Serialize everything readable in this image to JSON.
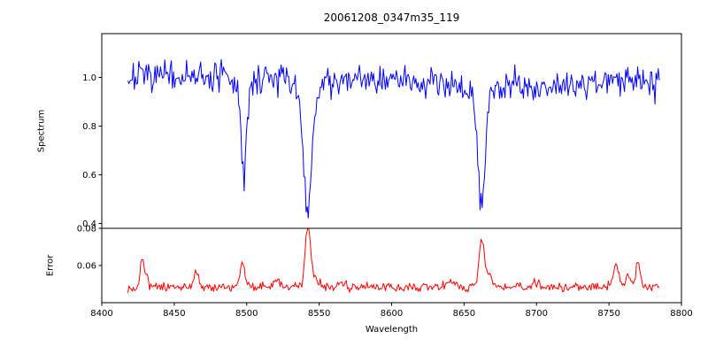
{
  "title": "20061208_0347m35_119",
  "xlabel": "Wavelength",
  "colors": {
    "spectrum": "#0000ff",
    "error": "#ff0000",
    "axis": "#000000",
    "background": "#ffffff"
  },
  "chart_data": [
    {
      "type": "line",
      "name": "spectrum",
      "title": "20061208_0347m35_119",
      "ylabel": "Spectrum",
      "color": "#0000ff",
      "legend": "none",
      "grid": false,
      "xlim": [
        8400,
        8800
      ],
      "ylim": [
        0.38,
        1.18
      ],
      "yticks": [
        0.4,
        0.6,
        0.8,
        1.0
      ],
      "ytick_labels": [
        "0.4",
        "0.6",
        "0.8",
        "1.0"
      ],
      "description": "Noisy stellar spectrum, continuum near 1.0 with Ca II triplet absorption lines at 8498, 8542 and 8662 reaching depths of about 0.59, 0.43 and 0.48",
      "generation": {
        "seed": 7,
        "x_start": 8418,
        "x_end": 8785,
        "x_step": 0.75,
        "baseline": 1.0,
        "noise_std": 0.03,
        "dips": [
          {
            "center": 8690,
            "depth": 0.035,
            "sigma": 50
          },
          {
            "center": 8498,
            "depth": 0.36,
            "sigma": 1.8
          },
          {
            "center": 8498,
            "depth": 0.05,
            "sigma": 5
          },
          {
            "center": 8542,
            "depth": 0.48,
            "sigma": 2.5
          },
          {
            "center": 8542,
            "depth": 0.1,
            "sigma": 7
          },
          {
            "center": 8662,
            "depth": 0.44,
            "sigma": 2.2
          },
          {
            "center": 8662,
            "depth": 0.08,
            "sigma": 6
          }
        ]
      }
    },
    {
      "type": "line",
      "name": "error",
      "ylabel": "Error",
      "color": "#ff0000",
      "legend": "none",
      "grid": false,
      "xlim": [
        8400,
        8800
      ],
      "ylim": [
        0.04,
        0.08
      ],
      "yticks": [
        0.06,
        0.08
      ],
      "ytick_labels": [
        "0.06",
        "0.08"
      ],
      "xticks": [
        8400,
        8450,
        8500,
        8550,
        8600,
        8650,
        8700,
        8750,
        8800
      ],
      "xtick_labels": [
        "8400",
        "8450",
        "8500",
        "8550",
        "8600",
        "8650",
        "8700",
        "8750",
        "8800"
      ],
      "description": "Error spectrum near 0.049 with peaks at the absorption-line wavelengths, largest ~0.08 at 8542",
      "generation": {
        "seed": 13,
        "x_start": 8418,
        "x_end": 8785,
        "x_step": 0.75,
        "baseline": 0.0485,
        "noise_std": 0.0012,
        "peaks": [
          {
            "center": 8428,
            "height": 0.016,
            "sigma": 1.2
          },
          {
            "center": 8431,
            "height": 0.006,
            "sigma": 1.0
          },
          {
            "center": 8465,
            "height": 0.008,
            "sigma": 1.5
          },
          {
            "center": 8497,
            "height": 0.013,
            "sigma": 1.5
          },
          {
            "center": 8521,
            "height": 0.004,
            "sigma": 2.0
          },
          {
            "center": 8542,
            "height": 0.028,
            "sigma": 1.8
          },
          {
            "center": 8545,
            "height": 0.007,
            "sigma": 3.0
          },
          {
            "center": 8565,
            "height": 0.003,
            "sigma": 2.0
          },
          {
            "center": 8640,
            "height": 0.003,
            "sigma": 2.0
          },
          {
            "center": 8662,
            "height": 0.022,
            "sigma": 1.8
          },
          {
            "center": 8666,
            "height": 0.006,
            "sigma": 3.0
          },
          {
            "center": 8700,
            "height": 0.003,
            "sigma": 2.0
          },
          {
            "center": 8755,
            "height": 0.012,
            "sigma": 2.0
          },
          {
            "center": 8763,
            "height": 0.006,
            "sigma": 2.0
          },
          {
            "center": 8770,
            "height": 0.013,
            "sigma": 1.5
          }
        ]
      }
    }
  ]
}
